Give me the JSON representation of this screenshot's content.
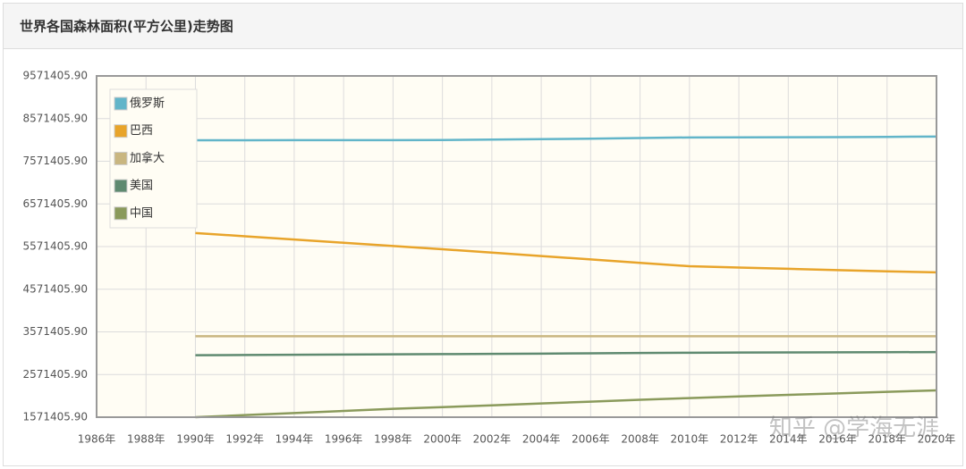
{
  "chart_data": {
    "type": "line",
    "title": "世界各国森林面积(平方公里)走势图",
    "watermark": "知乎 @学海无涯",
    "x": [
      1990,
      1992,
      1994,
      1996,
      1998,
      2000,
      2002,
      2004,
      2006,
      2008,
      2010,
      2012,
      2014,
      2016,
      2018,
      2020
    ],
    "series": [
      {
        "name": "俄罗斯",
        "color": "#62b5c9",
        "values": [
          8063000,
          8064000,
          8065000,
          8066000,
          8067000,
          8070000,
          8080000,
          8090000,
          8100000,
          8115000,
          8130000,
          8132000,
          8134000,
          8137000,
          8143000,
          8150000
        ]
      },
      {
        "name": "巴西",
        "color": "#e8a42a",
        "values": [
          5889000,
          5813000,
          5737000,
          5660000,
          5584000,
          5508000,
          5430000,
          5350000,
          5270000,
          5190000,
          5110000,
          5080000,
          5050000,
          5020000,
          4990000,
          4966000
        ]
      },
      {
        "name": "加拿大",
        "color": "#c9b680",
        "values": [
          3470000,
          3470000,
          3470000,
          3470000,
          3470000,
          3470000,
          3470000,
          3470000,
          3470000,
          3470000,
          3470000,
          3470000,
          3470000,
          3470000,
          3470000,
          3470000
        ]
      },
      {
        "name": "美国",
        "color": "#5f8a70",
        "values": [
          3024000,
          3030000,
          3035000,
          3040000,
          3045000,
          3050000,
          3055000,
          3062000,
          3070000,
          3077000,
          3083000,
          3087000,
          3090000,
          3093000,
          3095000,
          3098000
        ]
      },
      {
        "name": "中国",
        "color": "#8a9a5b",
        "values": [
          1571405.9,
          1620000,
          1669000,
          1718000,
          1767000,
          1807000,
          1850000,
          1893000,
          1936000,
          1980000,
          2020000,
          2057000,
          2094000,
          2130000,
          2166000,
          2199000
        ]
      }
    ],
    "xlim": [
      1986,
      2020
    ],
    "xticks": [
      {
        "value": 1986,
        "label": "1986年"
      },
      {
        "value": 1988,
        "label": "1988年"
      },
      {
        "value": 1990,
        "label": "1990年"
      },
      {
        "value": 1992,
        "label": "1992年"
      },
      {
        "value": 1994,
        "label": "1994年"
      },
      {
        "value": 1996,
        "label": "1996年"
      },
      {
        "value": 1998,
        "label": "1998年"
      },
      {
        "value": 2000,
        "label": "2000年"
      },
      {
        "value": 2002,
        "label": "2002年"
      },
      {
        "value": 2004,
        "label": "2004年"
      },
      {
        "value": 2006,
        "label": "2006年"
      },
      {
        "value": 2008,
        "label": "2008年"
      },
      {
        "value": 2010,
        "label": "2010年"
      },
      {
        "value": 2012,
        "label": "2012年"
      },
      {
        "value": 2014,
        "label": "2014年"
      },
      {
        "value": 2016,
        "label": "2016年"
      },
      {
        "value": 2018,
        "label": "2018年"
      },
      {
        "value": 2020,
        "label": "2020年"
      }
    ],
    "ylim": [
      1571405.9,
      9571405.9
    ],
    "yticks": [
      {
        "value": 1571405.9,
        "label": "1571405.90"
      },
      {
        "value": 2571405.9,
        "label": "2571405.90"
      },
      {
        "value": 3571405.9,
        "label": "3571405.90"
      },
      {
        "value": 4571405.9,
        "label": "4571405.90"
      },
      {
        "value": 5571405.9,
        "label": "5571405.90"
      },
      {
        "value": 6571405.9,
        "label": "6571405.90"
      },
      {
        "value": 7571405.9,
        "label": "7571405.90"
      },
      {
        "value": 8571405.9,
        "label": "8571405.90"
      },
      {
        "value": 9571405.9,
        "label": "9571405.90"
      }
    ],
    "grid": true,
    "legend": "top-left"
  }
}
